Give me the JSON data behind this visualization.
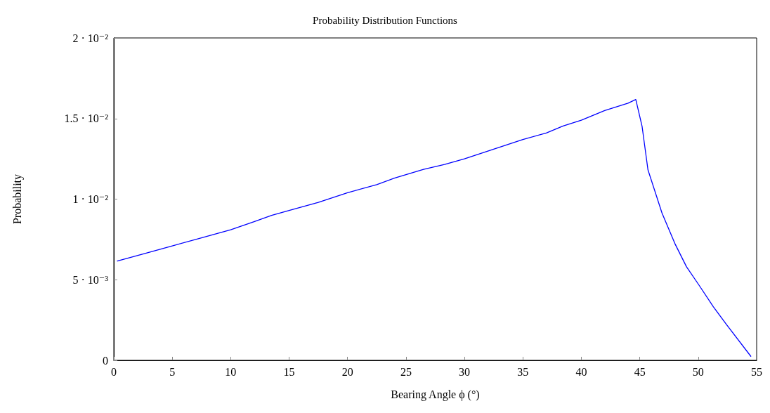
{
  "chart_data": {
    "type": "line",
    "title": "Probability Distribution Functions",
    "xlabel": "Bearing Angle ϕ (°)",
    "ylabel": "Probability",
    "x": [
      0.3,
      2.5,
      5,
      7.5,
      10,
      12,
      13.5,
      15,
      17.5,
      20,
      22.5,
      24,
      26.5,
      28.3,
      30,
      32.5,
      35,
      37,
      38.44,
      40,
      42,
      44,
      44.66,
      45.2,
      45.7,
      46.9,
      48.0,
      49.0,
      50.1,
      51.3,
      52.4,
      54.5
    ],
    "series": [
      {
        "color": "#0000ff",
        "values": [
          0.00616,
          0.0066,
          0.0071,
          0.0076,
          0.0081,
          0.0086,
          0.00899,
          0.0093,
          0.0098,
          0.0104,
          0.0109,
          0.0113,
          0.01185,
          0.01215,
          0.0125,
          0.0131,
          0.0137,
          0.0141,
          0.01454,
          0.0149,
          0.0155,
          0.01595,
          0.01618,
          0.0145,
          0.01182,
          0.00914,
          0.00725,
          0.0058,
          0.00463,
          0.00332,
          0.00224,
          0.00025
        ]
      }
    ],
    "xlim": [
      0,
      55
    ],
    "xticks": [
      0,
      5,
      10,
      15,
      20,
      25,
      30,
      35,
      40,
      45,
      50,
      55
    ],
    "ylim": [
      0,
      0.02
    ],
    "yticks": [
      {
        "value": 0,
        "label": "0"
      },
      {
        "value": 0.005,
        "label": "5 · 10⁻³"
      },
      {
        "value": 0.01,
        "label": "1 · 10⁻²"
      },
      {
        "value": 0.015,
        "label": "1.5 · 10⁻²"
      },
      {
        "value": 0.02,
        "label": "2 · 10⁻²"
      }
    ],
    "grid": false,
    "marker": "none",
    "line_style": "solid"
  }
}
